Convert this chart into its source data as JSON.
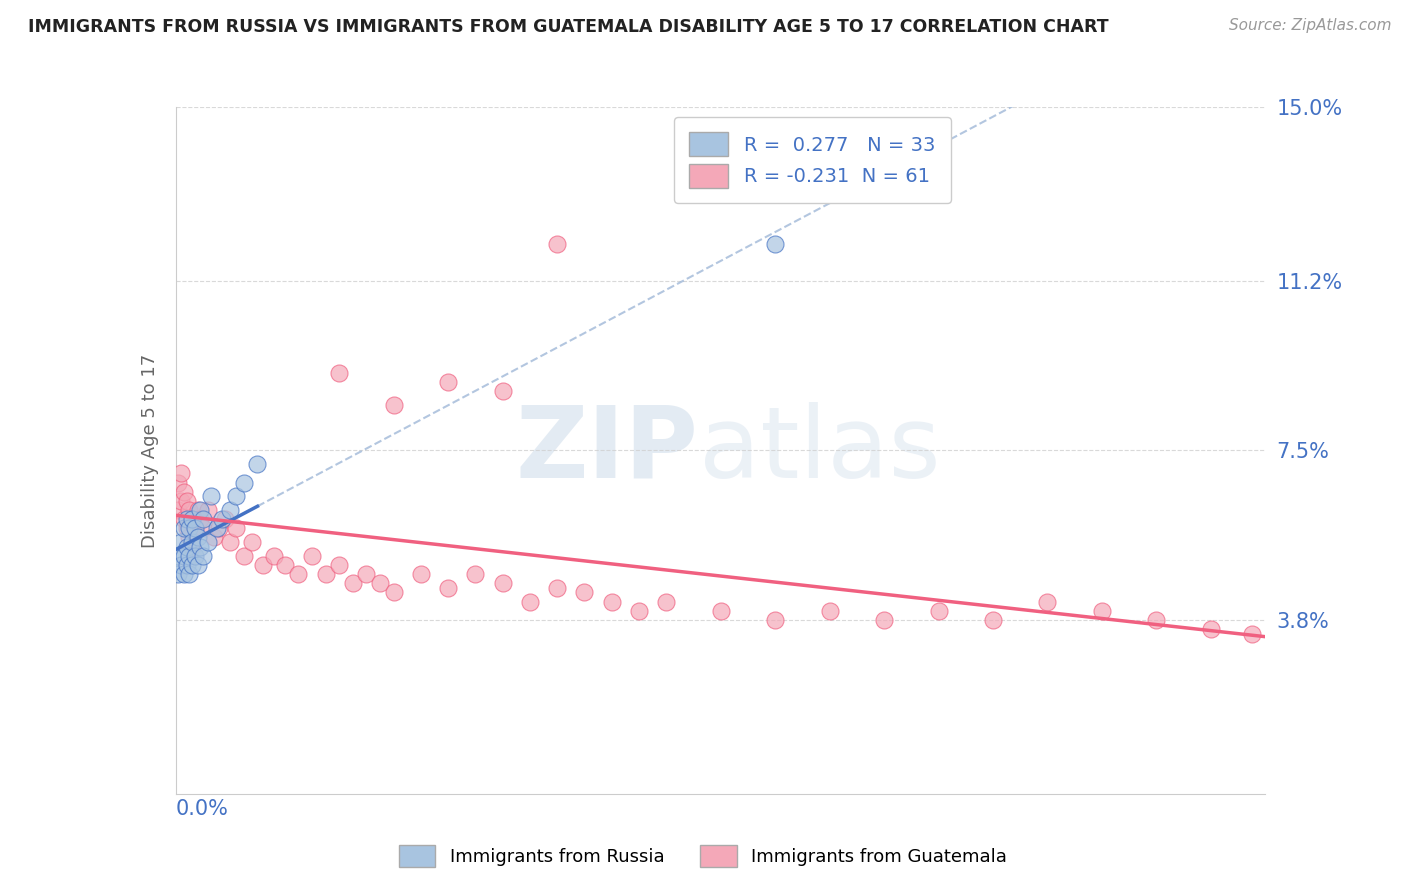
{
  "title": "IMMIGRANTS FROM RUSSIA VS IMMIGRANTS FROM GUATEMALA DISABILITY AGE 5 TO 17 CORRELATION CHART",
  "source_text": "Source: ZipAtlas.com",
  "ylabel": "Disability Age 5 to 17",
  "xlim": [
    0.0,
    0.4
  ],
  "ylim": [
    0.0,
    0.15
  ],
  "yticks": [
    0.038,
    0.075,
    0.112,
    0.15
  ],
  "ytick_labels": [
    "3.8%",
    "7.5%",
    "11.2%",
    "15.0%"
  ],
  "russia_R": 0.277,
  "russia_N": 33,
  "guatemala_R": -0.231,
  "guatemala_N": 61,
  "russia_color": "#a8c4e0",
  "guatemala_color": "#f4a8b8",
  "russia_line_color": "#4472c4",
  "guatemala_line_color": "#f06080",
  "russia_scatter_x": [
    0.001,
    0.001,
    0.002,
    0.002,
    0.003,
    0.003,
    0.003,
    0.004,
    0.004,
    0.004,
    0.005,
    0.005,
    0.005,
    0.006,
    0.006,
    0.006,
    0.007,
    0.007,
    0.008,
    0.008,
    0.009,
    0.009,
    0.01,
    0.01,
    0.012,
    0.013,
    0.015,
    0.017,
    0.02,
    0.022,
    0.025,
    0.03,
    0.22
  ],
  "russia_scatter_y": [
    0.048,
    0.052,
    0.05,
    0.055,
    0.048,
    0.052,
    0.058,
    0.05,
    0.054,
    0.06,
    0.048,
    0.052,
    0.058,
    0.05,
    0.055,
    0.06,
    0.052,
    0.058,
    0.05,
    0.056,
    0.054,
    0.062,
    0.052,
    0.06,
    0.055,
    0.065,
    0.058,
    0.06,
    0.062,
    0.065,
    0.068,
    0.072,
    0.12
  ],
  "guatemala_scatter_x": [
    0.001,
    0.001,
    0.002,
    0.002,
    0.003,
    0.003,
    0.004,
    0.004,
    0.005,
    0.005,
    0.006,
    0.006,
    0.007,
    0.008,
    0.009,
    0.01,
    0.012,
    0.014,
    0.016,
    0.018,
    0.02,
    0.022,
    0.025,
    0.028,
    0.032,
    0.036,
    0.04,
    0.045,
    0.05,
    0.055,
    0.06,
    0.065,
    0.07,
    0.075,
    0.08,
    0.09,
    0.1,
    0.11,
    0.12,
    0.13,
    0.14,
    0.15,
    0.16,
    0.17,
    0.18,
    0.2,
    0.22,
    0.24,
    0.26,
    0.28,
    0.3,
    0.32,
    0.34,
    0.36,
    0.38,
    0.395,
    0.06,
    0.08,
    0.1,
    0.12,
    0.14
  ],
  "guatemala_scatter_y": [
    0.062,
    0.068,
    0.064,
    0.07,
    0.06,
    0.066,
    0.058,
    0.064,
    0.056,
    0.062,
    0.054,
    0.06,
    0.058,
    0.062,
    0.06,
    0.058,
    0.062,
    0.056,
    0.058,
    0.06,
    0.055,
    0.058,
    0.052,
    0.055,
    0.05,
    0.052,
    0.05,
    0.048,
    0.052,
    0.048,
    0.05,
    0.046,
    0.048,
    0.046,
    0.044,
    0.048,
    0.045,
    0.048,
    0.046,
    0.042,
    0.045,
    0.044,
    0.042,
    0.04,
    0.042,
    0.04,
    0.038,
    0.04,
    0.038,
    0.04,
    0.038,
    0.042,
    0.04,
    0.038,
    0.036,
    0.035,
    0.092,
    0.085,
    0.09,
    0.088,
    0.12
  ],
  "watermark_zip": "ZIP",
  "watermark_atlas": "atlas",
  "background_color": "#ffffff",
  "grid_color": "#d0d0d0",
  "title_color": "#222222",
  "tick_label_color": "#4472c4"
}
